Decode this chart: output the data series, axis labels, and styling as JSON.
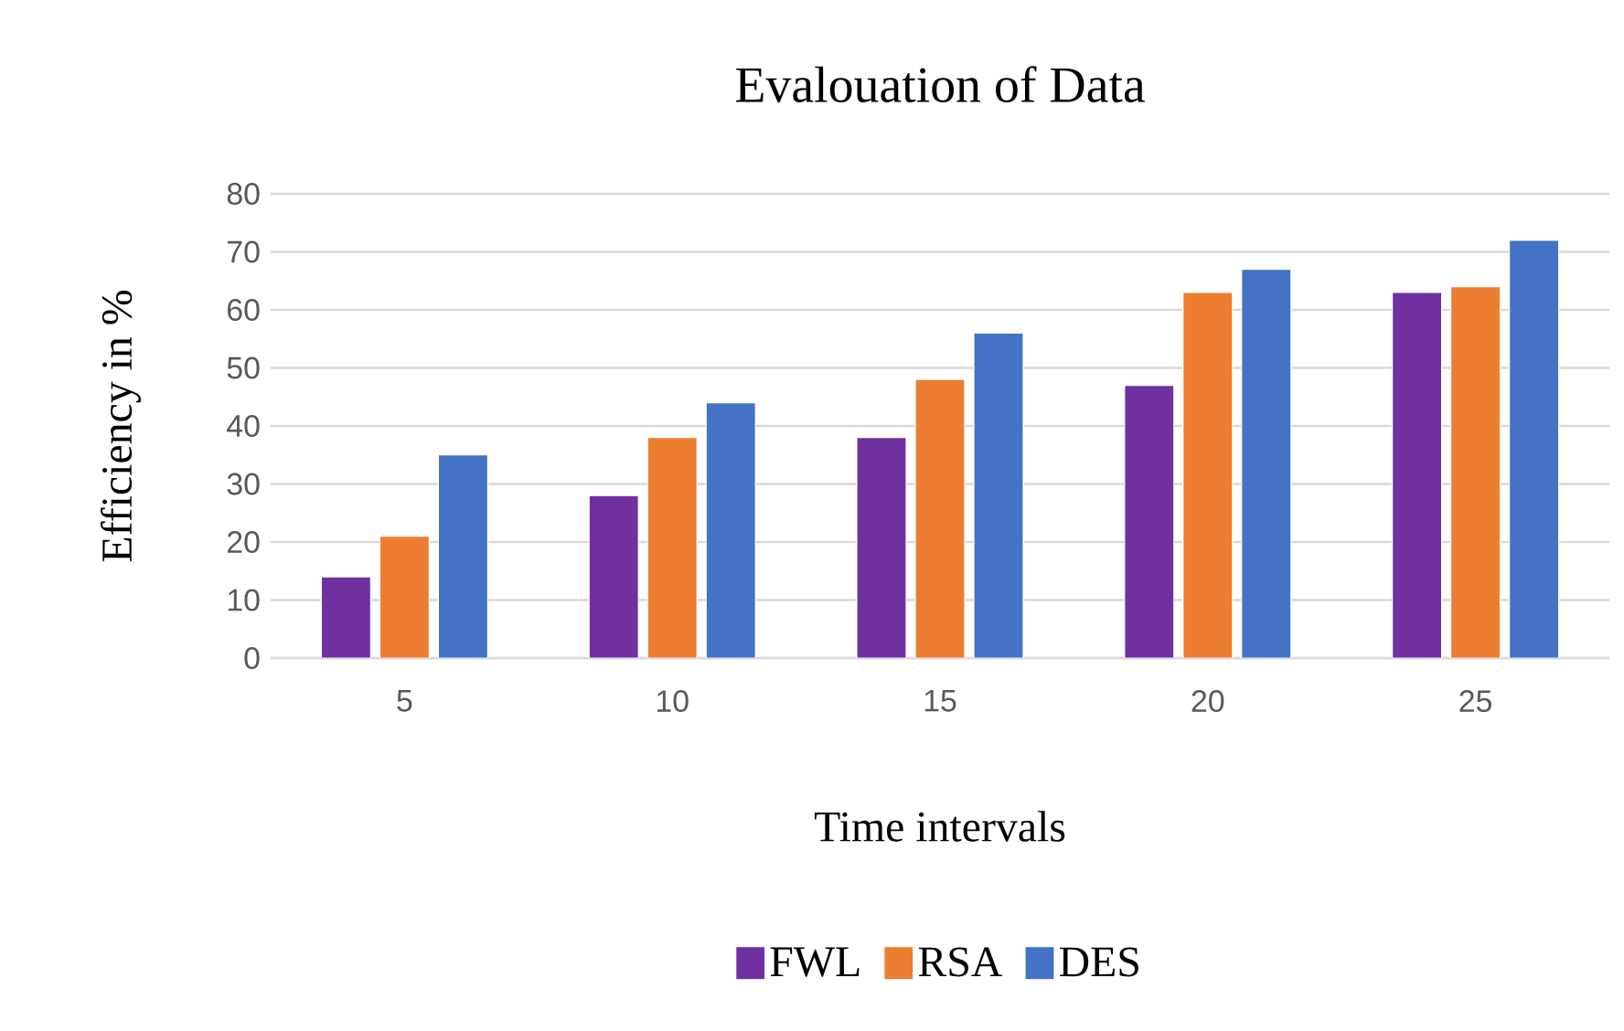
{
  "chart_data": {
    "type": "bar",
    "title": "Evalouation of Data",
    "xlabel": "Time intervals",
    "ylabel": "Efficiency in %",
    "categories": [
      "5",
      "10",
      "15",
      "20",
      "25"
    ],
    "series": [
      {
        "name": "FWL",
        "color": "#7030a0",
        "values": [
          14,
          28,
          38,
          47,
          63
        ]
      },
      {
        "name": "RSA",
        "color": "#ed7d31",
        "values": [
          21,
          38,
          48,
          63,
          64
        ]
      },
      {
        "name": "DES",
        "color": "#4472c4",
        "values": [
          35,
          44,
          56,
          67,
          72
        ]
      }
    ],
    "ylim": [
      0,
      80
    ],
    "yticks": [
      0,
      10,
      20,
      30,
      40,
      50,
      60,
      70,
      80
    ],
    "grid": "y",
    "legend": "bottom"
  }
}
